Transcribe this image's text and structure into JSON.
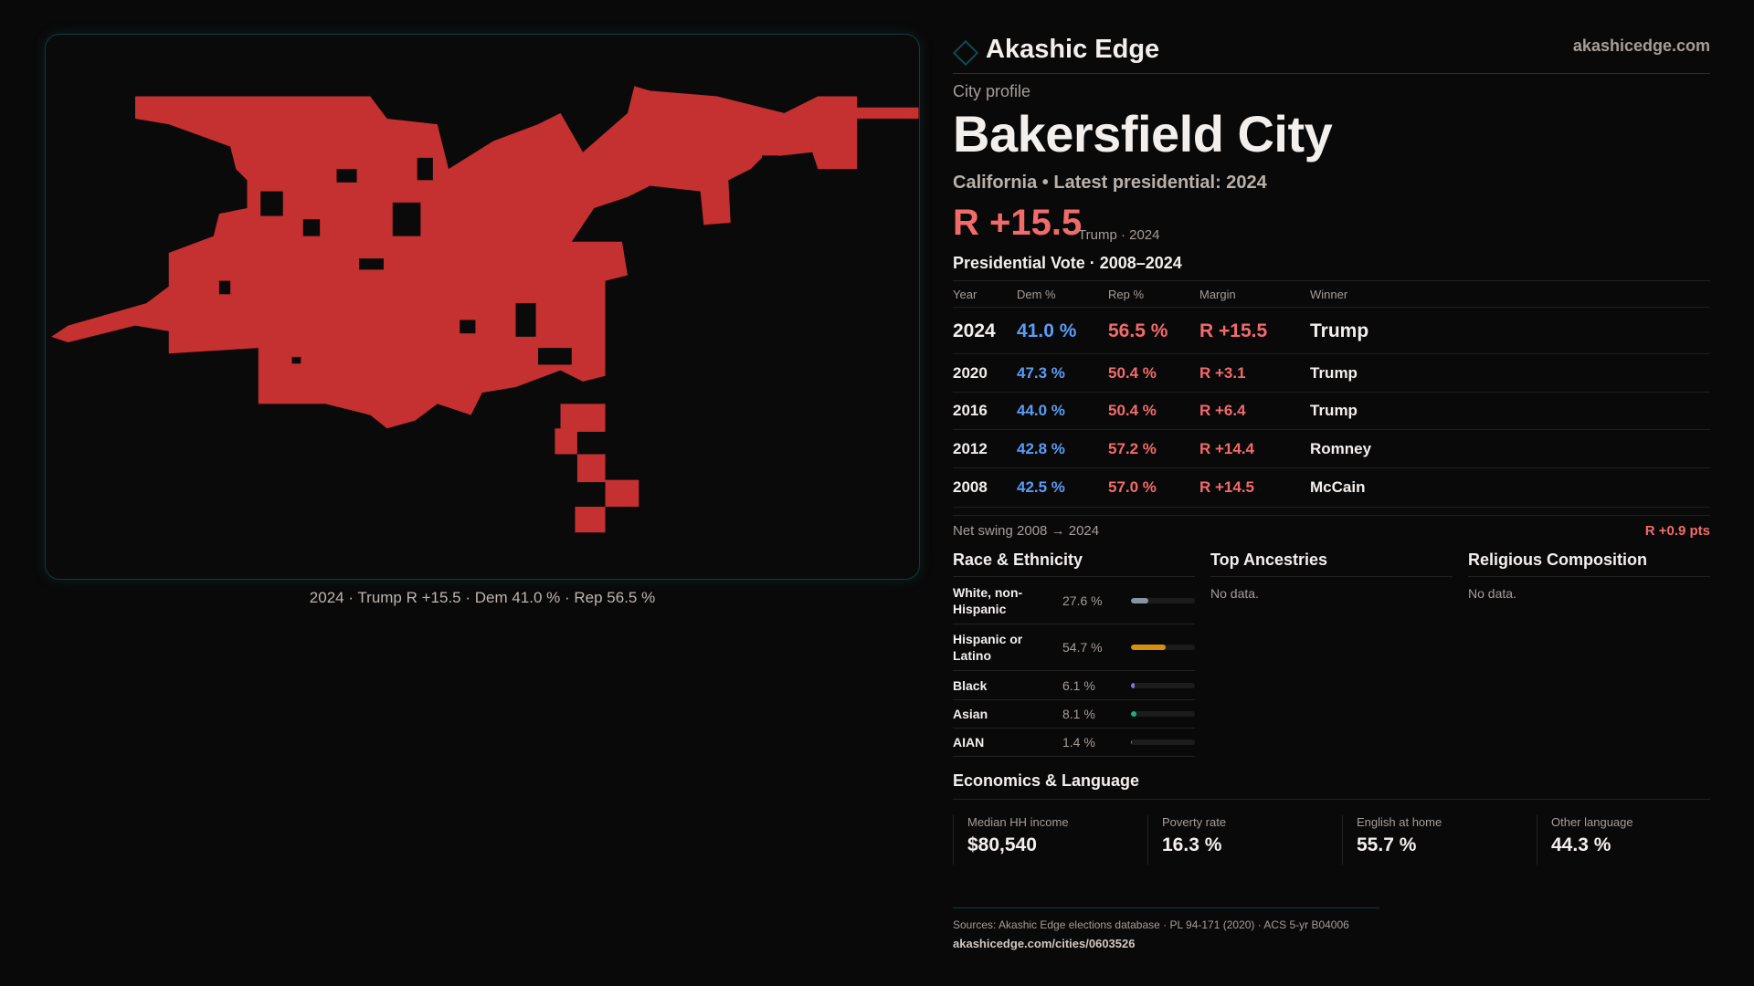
{
  "map": {
    "caption": "2024 · Trump R +15.5 · Dem 41.0 % · Rep 56.5 %",
    "fill_color": "#c53030"
  },
  "header": {
    "brand": "Akashic Edge",
    "site": "akashicedge.com"
  },
  "profile": {
    "kicker": "City profile",
    "title": "Bakersfield City",
    "subtitle": "California • Latest presidential: 2024",
    "margin": "R +15.5",
    "margin_note": "Trump · 2024"
  },
  "votes": {
    "heading": "Presidential Vote · 2008–2024",
    "columns": [
      "Year",
      "Dem %",
      "Rep %",
      "Margin",
      "Winner"
    ],
    "rows": [
      {
        "year": "2024",
        "dem": "41.0 %",
        "rep": "56.5 %",
        "margin": "R +15.5",
        "winner": "Trump"
      },
      {
        "year": "2020",
        "dem": "47.3 %",
        "rep": "50.4 %",
        "margin": "R +3.1",
        "winner": "Trump"
      },
      {
        "year": "2016",
        "dem": "44.0 %",
        "rep": "50.4 %",
        "margin": "R +6.4",
        "winner": "Trump"
      },
      {
        "year": "2012",
        "dem": "42.8 %",
        "rep": "57.2 %",
        "margin": "R +14.4",
        "winner": "Romney"
      },
      {
        "year": "2008",
        "dem": "42.5 %",
        "rep": "57.0 %",
        "margin": "R +14.5",
        "winner": "McCain"
      }
    ],
    "swing_label": "Net swing 2008 → 2024",
    "swing_value": "R +0.9 pts"
  },
  "race": {
    "heading": "Race & Ethnicity",
    "rows": [
      {
        "label": "White, non-Hispanic",
        "value": "27.6 %",
        "pct": 27.6,
        "color": "#8a93a3"
      },
      {
        "label": "Hispanic or Latino",
        "value": "54.7 %",
        "pct": 54.7,
        "color": "#d4900f"
      },
      {
        "label": "Black",
        "value": "6.1 %",
        "pct": 6.1,
        "color": "#8a6fe0"
      },
      {
        "label": "Asian",
        "value": "8.1 %",
        "pct": 8.1,
        "color": "#20b07a"
      },
      {
        "label": "AIAN",
        "value": "1.4 %",
        "pct": 1.4,
        "color": "#d06a10"
      }
    ]
  },
  "ancestries": {
    "heading": "Top Ancestries",
    "empty": "No data."
  },
  "religion": {
    "heading": "Religious Composition",
    "empty": "No data."
  },
  "economics": {
    "heading": "Economics & Language",
    "cards": [
      {
        "label": "Median HH income",
        "value": "$80,540"
      },
      {
        "label": "Poverty rate",
        "value": "16.3 %"
      },
      {
        "label": "English at home",
        "value": "55.7 %"
      },
      {
        "label": "Other language",
        "value": "44.3 %"
      }
    ]
  },
  "footer": {
    "sources": "Sources: Akashic Edge elections database · PL 94-171 (2020) · ACS 5-yr B04006",
    "url": "akashicedge.com/cities/0603526"
  }
}
